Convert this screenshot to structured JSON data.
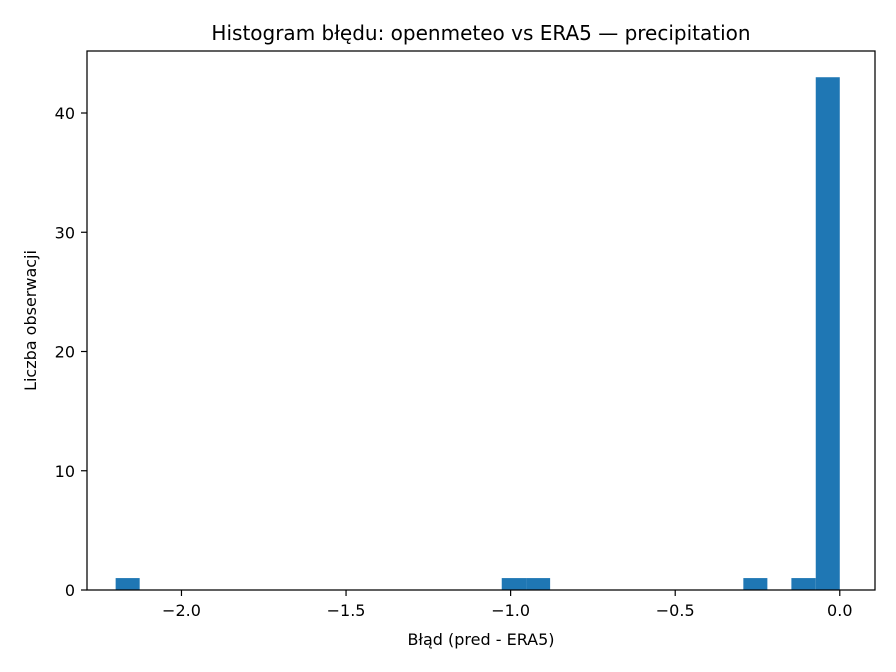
{
  "chart_data": {
    "type": "bar",
    "title": "Histogram błędu: openmeteo vs ERA5 — precipitation",
    "xlabel": "Błąd (pred - ERA5)",
    "ylabel": "Liczba obserwacji",
    "xlim": [
      -2.287,
      0.107
    ],
    "ylim": [
      0,
      45.2
    ],
    "x_ticks": [
      -2.0,
      -1.5,
      -1.0,
      -0.5,
      0.0
    ],
    "x_tick_labels": [
      "−2.0",
      "−1.5",
      "−1.0",
      "−0.5",
      "0.0"
    ],
    "y_ticks": [
      0,
      10,
      20,
      30,
      40
    ],
    "y_tick_labels": [
      "0",
      "10",
      "20",
      "30",
      "40"
    ],
    "bin_start": -2.2,
    "bin_width": 0.0733,
    "bin_count": 30,
    "bins": [
      {
        "x0": -2.2,
        "x1": -2.127,
        "count": 1
      },
      {
        "x0": -1.027,
        "x1": -0.953,
        "count": 1
      },
      {
        "x0": -0.953,
        "x1": -0.88,
        "count": 1
      },
      {
        "x0": -0.293,
        "x1": -0.22,
        "count": 1
      },
      {
        "x0": -0.147,
        "x1": -0.073,
        "count": 1
      },
      {
        "x0": -0.073,
        "x1": 0.0,
        "count": 43
      }
    ],
    "bar_color": "#1f77b4",
    "grid": false
  }
}
